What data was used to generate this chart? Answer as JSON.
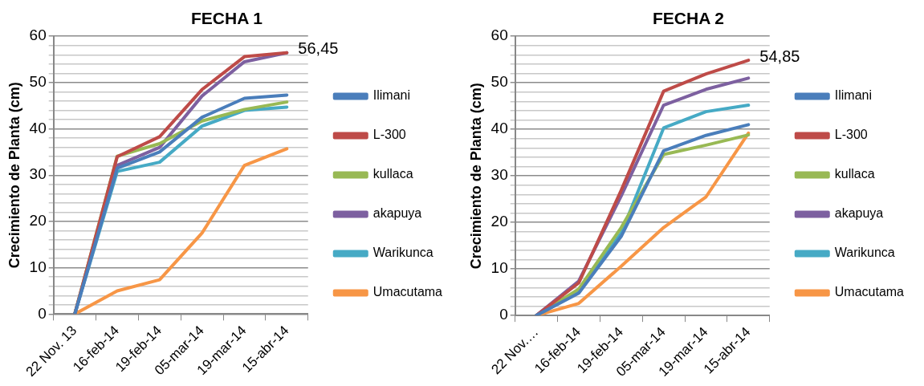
{
  "chart_data": [
    {
      "type": "line",
      "title": "FECHA 1",
      "ylabel": "Crecimiento de Planta (cm)",
      "categories": [
        "22 Nov. 13",
        "16-feb-14",
        "19-feb-14",
        "05-mar-14",
        "19-mar-14",
        "15-abr-14"
      ],
      "series": [
        {
          "name": "Ilimani",
          "color": "#4a7ebb",
          "values": [
            0,
            31.5,
            35,
            42.5,
            46.6,
            47.3
          ]
        },
        {
          "name": "L-300",
          "color": "#be4b48",
          "values": [
            0,
            34,
            38.3,
            48.5,
            55.6,
            56.45
          ]
        },
        {
          "name": "kullaca",
          "color": "#98b954",
          "values": [
            0,
            34.1,
            36.8,
            41.7,
            44.2,
            45.8
          ]
        },
        {
          "name": "akapuya",
          "color": "#7d60a0",
          "values": [
            0,
            32.1,
            36,
            47.1,
            54.5,
            56.45
          ]
        },
        {
          "name": "Warikunca",
          "color": "#46aac5",
          "values": [
            0,
            30.8,
            32.8,
            40.6,
            44,
            44.7
          ]
        },
        {
          "name": "Umacutama",
          "color": "#f79646",
          "values": [
            0,
            5,
            7.4,
            17.5,
            32.1,
            35.7
          ]
        }
      ],
      "ylim": [
        0,
        60
      ],
      "yticks": [
        0,
        {
          "value": 2,
          "label": null
        },
        {
          "value": 4,
          "label": null
        },
        {
          "value": 6,
          "label": null
        },
        {
          "value": 8,
          "label": null
        },
        10,
        {
          "value": 12,
          "label": null
        },
        {
          "value": 14,
          "label": null
        },
        {
          "value": 16,
          "label": null
        },
        {
          "value": 18,
          "label": null
        },
        20,
        {
          "value": 22,
          "label": null
        },
        {
          "value": 24,
          "label": null
        },
        {
          "value": 26,
          "label": null
        },
        {
          "value": 28,
          "label": null
        },
        30,
        {
          "value": 32,
          "label": null
        },
        {
          "value": 34,
          "label": null
        },
        {
          "value": 36,
          "label": null
        },
        {
          "value": 38,
          "label": null
        },
        40,
        {
          "value": 42,
          "label": null
        },
        {
          "value": 44,
          "label": null
        },
        {
          "value": 46,
          "label": null
        },
        {
          "value": 48,
          "label": null
        },
        50,
        {
          "value": 52,
          "label": null
        },
        {
          "value": 54,
          "label": null
        },
        {
          "value": 56,
          "label": null
        },
        {
          "value": 58,
          "label": null
        },
        60
      ],
      "grid": "y",
      "legend": "right",
      "marker": "none",
      "annotations": [
        {
          "text": "56,45",
          "x": "15-abr-14",
          "y": 56.45
        }
      ]
    },
    {
      "type": "line",
      "title": "FECHA 2",
      "ylabel": "Crecimiento de Planta (cm)",
      "categories": [
        "22 Nov.…",
        "16-feb-14",
        "19-feb-14",
        "05-mar-14",
        "19-mar-14",
        "15-abr-14"
      ],
      "series": [
        {
          "name": "Ilimani",
          "color": "#4a7ebb",
          "values": [
            0,
            4.8,
            17,
            35.4,
            38.7,
            41
          ]
        },
        {
          "name": "L-300",
          "color": "#be4b48",
          "values": [
            0,
            7,
            26.9,
            48.2,
            51.9,
            54.85
          ]
        },
        {
          "name": "kullaca",
          "color": "#98b954",
          "values": [
            0,
            5.7,
            18.9,
            34.6,
            36.6,
            38.8
          ]
        },
        {
          "name": "akapuya",
          "color": "#7d60a0",
          "values": [
            0,
            7.4,
            25.7,
            45.2,
            48.6,
            51
          ]
        },
        {
          "name": "Warikunca",
          "color": "#46aac5",
          "values": [
            0,
            5,
            17.7,
            40.3,
            43.8,
            45.2
          ]
        },
        {
          "name": "Umacutama",
          "color": "#f79646",
          "values": [
            0,
            2.6,
            10.6,
            18.9,
            25.5,
            39.2
          ]
        }
      ],
      "ylim": [
        0,
        60
      ],
      "yticks": [
        0,
        {
          "value": 2,
          "label": null
        },
        {
          "value": 4,
          "label": null
        },
        {
          "value": 6,
          "label": null
        },
        {
          "value": 8,
          "label": null
        },
        10,
        {
          "value": 12,
          "label": null
        },
        {
          "value": 14,
          "label": null
        },
        {
          "value": 16,
          "label": null
        },
        {
          "value": 18,
          "label": null
        },
        20,
        {
          "value": 22,
          "label": null
        },
        {
          "value": 24,
          "label": null
        },
        {
          "value": 26,
          "label": null
        },
        {
          "value": 28,
          "label": null
        },
        30,
        {
          "value": 32,
          "label": null
        },
        {
          "value": 34,
          "label": null
        },
        {
          "value": 36,
          "label": null
        },
        {
          "value": 38,
          "label": null
        },
        40,
        {
          "value": 42,
          "label": null
        },
        {
          "value": 44,
          "label": null
        },
        {
          "value": 46,
          "label": null
        },
        {
          "value": 48,
          "label": null
        },
        50,
        {
          "value": 52,
          "label": null
        },
        {
          "value": 54,
          "label": null
        },
        {
          "value": 56,
          "label": null
        },
        {
          "value": 58,
          "label": null
        },
        60
      ],
      "grid": "y",
      "legend": "right",
      "marker": "none",
      "annotations": [
        {
          "text": "54,85",
          "x": "15-abr-14",
          "y": 54.85
        }
      ]
    }
  ]
}
